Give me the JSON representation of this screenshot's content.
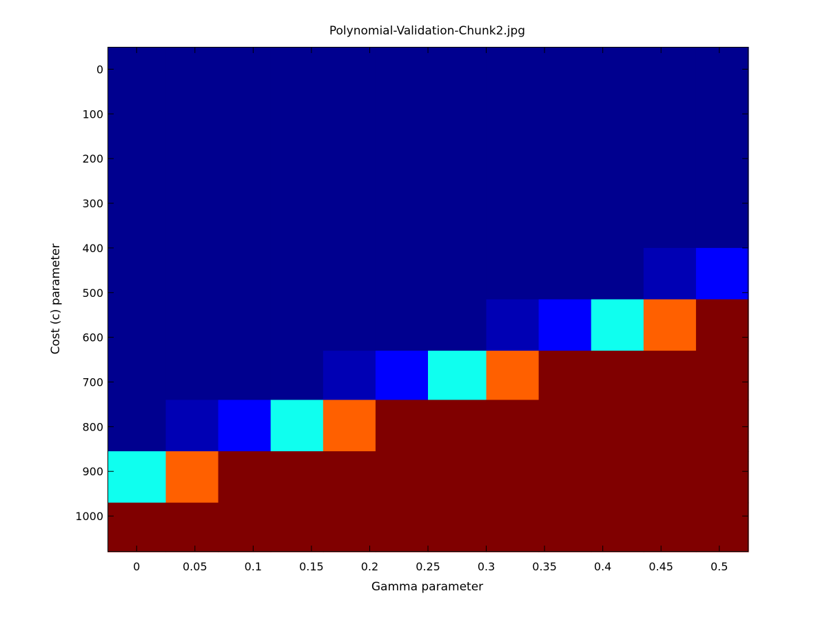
{
  "chart_data": {
    "type": "heatmap",
    "title": "Polynomial-Validation-Chunk2.jpg",
    "xlabel": "Gamma parameter",
    "ylabel": "Cost (c) parameter",
    "x_ticks": [
      "0",
      "0.05",
      "0.1",
      "0.15",
      "0.2",
      "0.25",
      "0.3",
      "0.35",
      "0.4",
      "0.45",
      "0.5"
    ],
    "y_ticks": [
      "0",
      "100",
      "200",
      "300",
      "400",
      "500",
      "600",
      "700",
      "800",
      "900",
      "1000"
    ],
    "x_range": [
      -0.025,
      0.525
    ],
    "y_range": [
      -50,
      1080
    ],
    "grid": false,
    "colormap": "jet",
    "color_levels": {
      "0": "#00008F",
      "1": "#0000B4",
      "2": "#0000FF",
      "3": "#0FFFEF",
      "4": "#FF6000",
      "5": "#800000"
    },
    "x_edges": [
      -0.025,
      0.025,
      0.07,
      0.115,
      0.16,
      0.205,
      0.25,
      0.3,
      0.345,
      0.39,
      0.435,
      0.48,
      0.525
    ],
    "y_edges": [
      -50,
      400,
      515,
      630,
      740,
      855,
      970,
      1080
    ],
    "cells": [
      [
        0,
        0,
        0,
        0,
        0,
        0,
        0,
        0,
        0,
        0,
        0,
        0
      ],
      [
        0,
        0,
        0,
        0,
        0,
        0,
        0,
        0,
        0,
        0,
        1,
        2
      ],
      [
        0,
        0,
        0,
        0,
        0,
        0,
        0,
        1,
        2,
        3,
        4,
        5
      ],
      [
        0,
        0,
        0,
        0,
        1,
        2,
        3,
        4,
        5,
        5,
        5,
        5
      ],
      [
        0,
        1,
        2,
        3,
        4,
        5,
        5,
        5,
        5,
        5,
        5,
        5
      ],
      [
        3,
        4,
        5,
        5,
        5,
        5,
        5,
        5,
        5,
        5,
        5,
        5
      ],
      [
        5,
        5,
        5,
        5,
        5,
        5,
        5,
        5,
        5,
        5,
        5,
        5
      ]
    ]
  }
}
